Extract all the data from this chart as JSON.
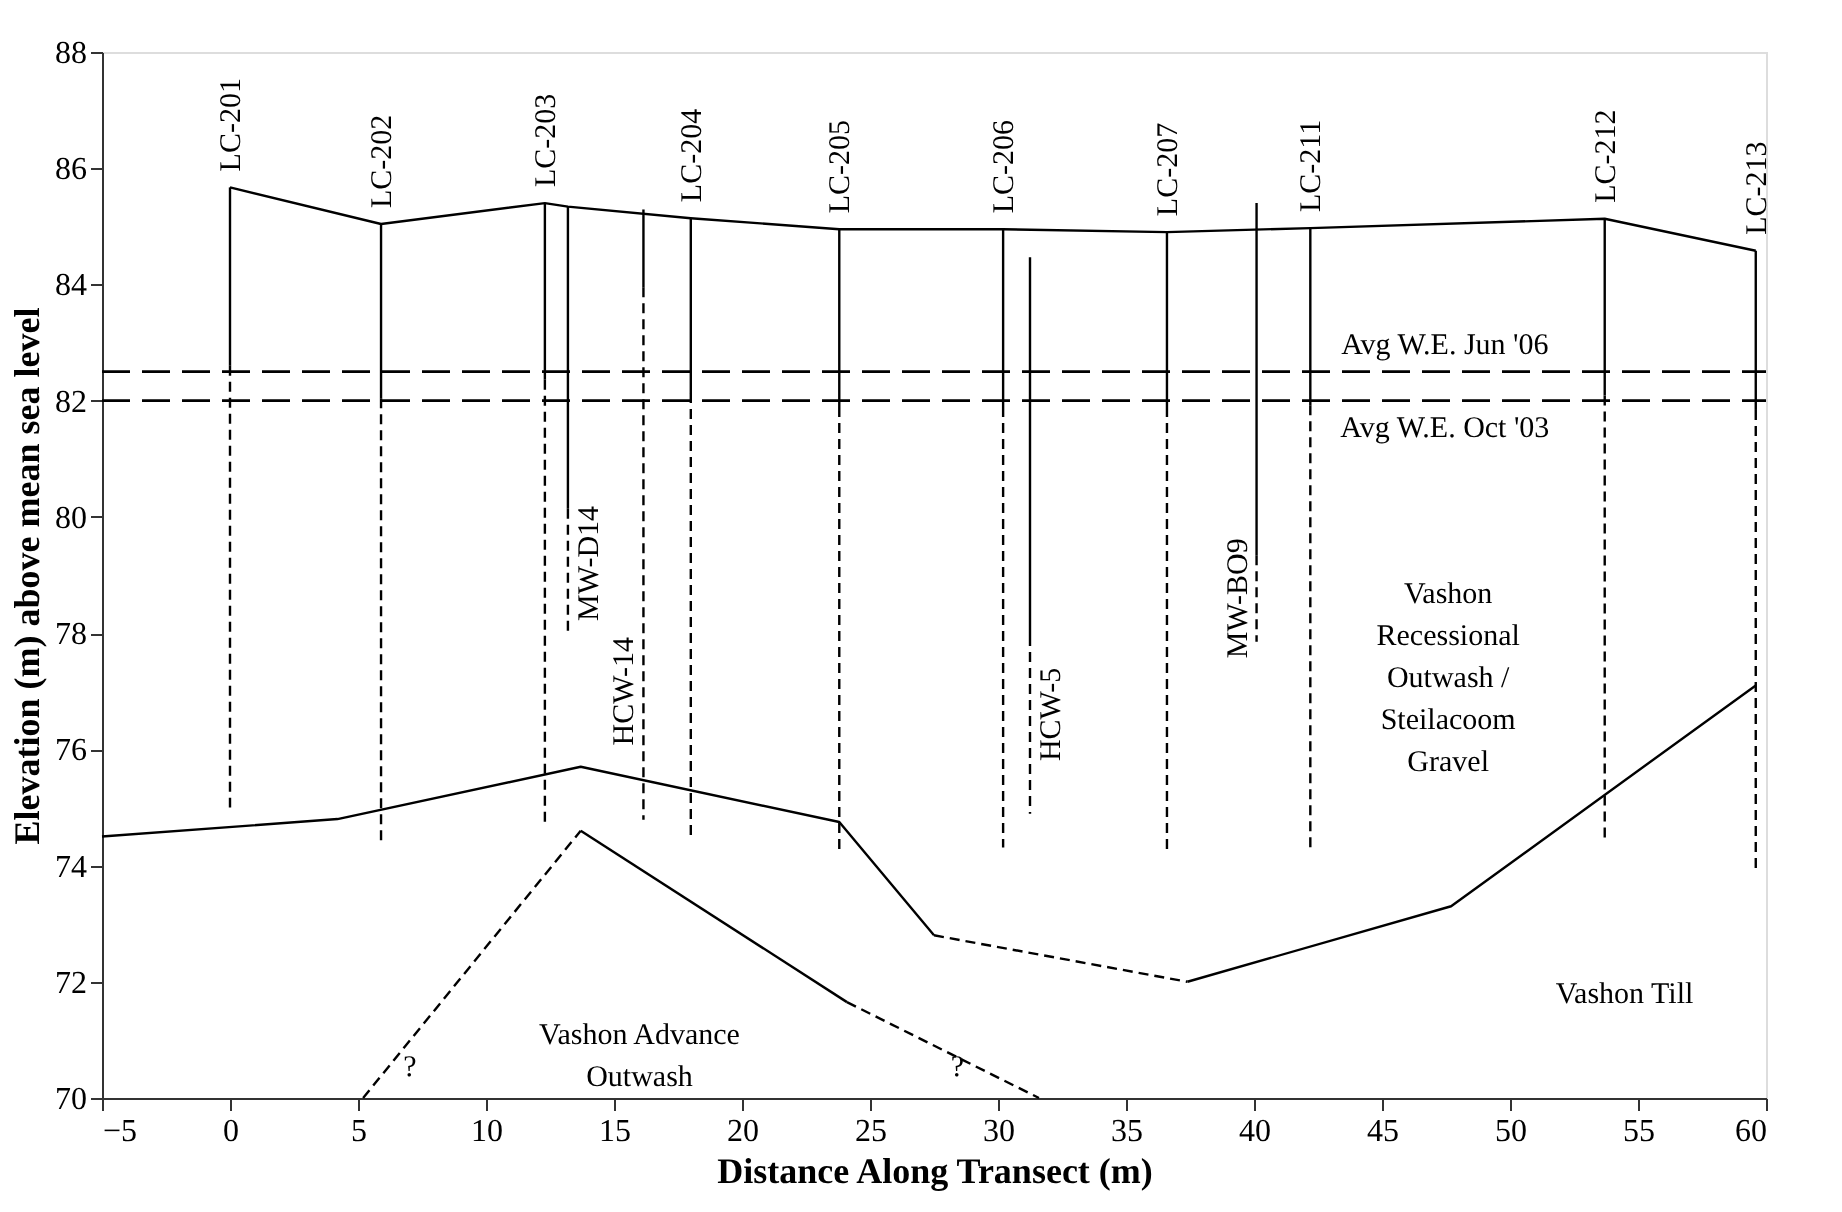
{
  "chart_data": {
    "type": "line",
    "xlabel": "Distance Along Transect (m)",
    "ylabel": "Elevation (m) above mean sea level",
    "xlim": [
      -5,
      60
    ],
    "xticks": [
      -5,
      0,
      5,
      10,
      15,
      20,
      25,
      30,
      35,
      40,
      45,
      50,
      55,
      60
    ],
    "ylim": [
      70,
      88
    ],
    "yticks": [
      70,
      72,
      74,
      76,
      78,
      80,
      82,
      84,
      86,
      88
    ],
    "grid": false,
    "series": [
      {
        "x": [
          0,
          5.9,
          12.3,
          13.2,
          18.0,
          23.8,
          30.2,
          36.6,
          42.2,
          53.7,
          59.6
        ],
        "values": [
          85.67,
          85.04,
          85.4,
          85.34,
          85.14,
          84.95,
          84.95,
          84.9,
          84.97,
          85.13,
          84.58
        ],
        "color": "#000000",
        "line_style": "solid"
      },
      {
        "x": [
          -5,
          4.2,
          13.7,
          23.8,
          27.5
        ],
        "values": [
          74.5,
          74.8,
          75.7,
          74.75,
          72.8
        ],
        "color": "#000000",
        "line_style": "solid"
      },
      {
        "x": [
          27.5,
          37.4
        ],
        "values": [
          72.8,
          72.0
        ],
        "color": "#000000",
        "line_style": "dashed"
      },
      {
        "x": [
          37.4,
          47.7,
          59.6
        ],
        "values": [
          72.0,
          73.3,
          77.1
        ],
        "color": "#000000",
        "line_style": "solid"
      },
      {
        "x": [
          5.2,
          13.7
        ],
        "values": [
          70.0,
          74.6
        ],
        "color": "#000000",
        "line_style": "dashed"
      },
      {
        "x": [
          13.7,
          24.1
        ],
        "values": [
          74.6,
          71.65
        ],
        "color": "#000000",
        "line_style": "solid"
      },
      {
        "x": [
          24.1,
          31.6
        ],
        "values": [
          71.65,
          70.0
        ],
        "color": "#000000",
        "line_style": "dashed"
      },
      {
        "name": "LC-201",
        "x": [
          0,
          0
        ],
        "values": [
          85.67,
          82.6
        ],
        "color": "#000000",
        "line_style": "solid"
      },
      {
        "x": [
          0,
          0
        ],
        "values": [
          82.6,
          75.0
        ],
        "color": "#000000",
        "line_style": "dashed"
      },
      {
        "name": "LC-202",
        "x": [
          5.9,
          5.9
        ],
        "values": [
          85.04,
          82.04
        ],
        "color": "#000000",
        "line_style": "solid"
      },
      {
        "x": [
          5.9,
          5.9
        ],
        "values": [
          82.04,
          74.37
        ],
        "color": "#000000",
        "line_style": "dashed"
      },
      {
        "name": "LC-203",
        "x": [
          12.3,
          12.3
        ],
        "values": [
          85.4,
          82.36
        ],
        "color": "#000000",
        "line_style": "solid"
      },
      {
        "x": [
          12.3,
          12.3
        ],
        "values": [
          82.36,
          74.75
        ],
        "color": "#000000",
        "line_style": "dashed"
      },
      {
        "x": [
          13.2,
          13.2
        ],
        "values": [
          85.34,
          80.14
        ],
        "color": "#000000",
        "line_style": "solid"
      },
      {
        "x": [
          13.2,
          13.2
        ],
        "values": [
          80.14,
          78.0
        ],
        "color": "#000000",
        "line_style": "dashed"
      },
      {
        "x": [
          16.15,
          16.15
        ],
        "values": [
          85.29,
          83.95
        ],
        "color": "#000000",
        "line_style": "solid"
      },
      {
        "x": [
          16.15,
          16.15
        ],
        "values": [
          83.95,
          74.79
        ],
        "color": "#000000",
        "line_style": "dashed"
      },
      {
        "name": "LC-204",
        "x": [
          18.0,
          18.0
        ],
        "values": [
          85.14,
          82.13
        ],
        "color": "#000000",
        "line_style": "solid"
      },
      {
        "x": [
          18.0,
          18.0
        ],
        "values": [
          82.13,
          74.52
        ],
        "color": "#000000",
        "line_style": "dashed"
      },
      {
        "name": "LC-205",
        "x": [
          23.8,
          23.8
        ],
        "values": [
          84.95,
          81.89
        ],
        "color": "#000000",
        "line_style": "solid"
      },
      {
        "x": [
          23.8,
          23.8
        ],
        "values": [
          81.89,
          74.28
        ],
        "color": "#000000",
        "line_style": "dashed"
      },
      {
        "name": "LC-206",
        "x": [
          30.2,
          30.2
        ],
        "values": [
          84.95,
          81.89
        ],
        "color": "#000000",
        "line_style": "solid"
      },
      {
        "x": [
          30.2,
          30.2
        ],
        "values": [
          81.89,
          74.31
        ],
        "color": "#000000",
        "line_style": "dashed"
      },
      {
        "x": [
          31.25,
          31.25
        ],
        "values": [
          84.47,
          77.95
        ],
        "color": "#000000",
        "line_style": "solid"
      },
      {
        "x": [
          31.25,
          31.25
        ],
        "values": [
          77.95,
          74.89
        ],
        "color": "#000000",
        "line_style": "dashed"
      },
      {
        "name": "LC-207",
        "x": [
          36.6,
          36.6
        ],
        "values": [
          84.9,
          81.89
        ],
        "color": "#000000",
        "line_style": "solid"
      },
      {
        "x": [
          36.6,
          36.6
        ],
        "values": [
          81.89,
          74.26
        ],
        "color": "#000000",
        "line_style": "dashed"
      },
      {
        "x": [
          40.1,
          40.1
        ],
        "values": [
          85.4,
          79.34
        ],
        "color": "#000000",
        "line_style": "solid"
      },
      {
        "x": [
          40.1,
          40.1
        ],
        "values": [
          79.34,
          77.85
        ],
        "color": "#000000",
        "line_style": "dashed"
      },
      {
        "name": "LC-211",
        "x": [
          42.2,
          42.2
        ],
        "values": [
          84.97,
          81.92
        ],
        "color": "#000000",
        "line_style": "solid"
      },
      {
        "x": [
          42.2,
          42.2
        ],
        "values": [
          81.92,
          74.29
        ],
        "color": "#000000",
        "line_style": "dashed"
      },
      {
        "name": "LC-212",
        "x": [
          53.7,
          53.7
        ],
        "values": [
          85.13,
          82.09
        ],
        "color": "#000000",
        "line_style": "solid"
      },
      {
        "x": [
          53.7,
          53.7
        ],
        "values": [
          82.09,
          74.47
        ],
        "color": "#000000",
        "line_style": "dashed"
      },
      {
        "name": "LC-213",
        "x": [
          59.6,
          59.6
        ],
        "values": [
          84.58,
          81.84
        ],
        "color": "#000000",
        "line_style": "solid"
      },
      {
        "x": [
          59.6,
          59.6
        ],
        "values": [
          81.84,
          73.93
        ],
        "color": "#000000",
        "line_style": "dashed"
      }
    ],
    "ref_lines": [
      {
        "axis": "y",
        "value": 82.5,
        "label": "Avg W.E. Jun '06",
        "color": "#000000",
        "line_style": "dashed"
      },
      {
        "axis": "y",
        "value": 82.0,
        "label": "Avg W.E. Oct '03",
        "color": "#000000",
        "line_style": "dashed"
      }
    ],
    "annotations": [
      {
        "text": "MW-D14",
        "x": 13.2,
        "y": 79.2
      },
      {
        "text": "HCW-14",
        "x": 16.15,
        "y": 77.0
      },
      {
        "text": "HCW-5",
        "x": 31.25,
        "y": 76.6
      },
      {
        "text": "MW-BO9",
        "x": 40.1,
        "y": 78.6
      },
      "Vashon\nRecessional\nOutwash /\nSteilacoom\nGravel",
      "Vashon Advance\nOutwash",
      "Vashon Till",
      "?",
      "?"
    ]
  }
}
